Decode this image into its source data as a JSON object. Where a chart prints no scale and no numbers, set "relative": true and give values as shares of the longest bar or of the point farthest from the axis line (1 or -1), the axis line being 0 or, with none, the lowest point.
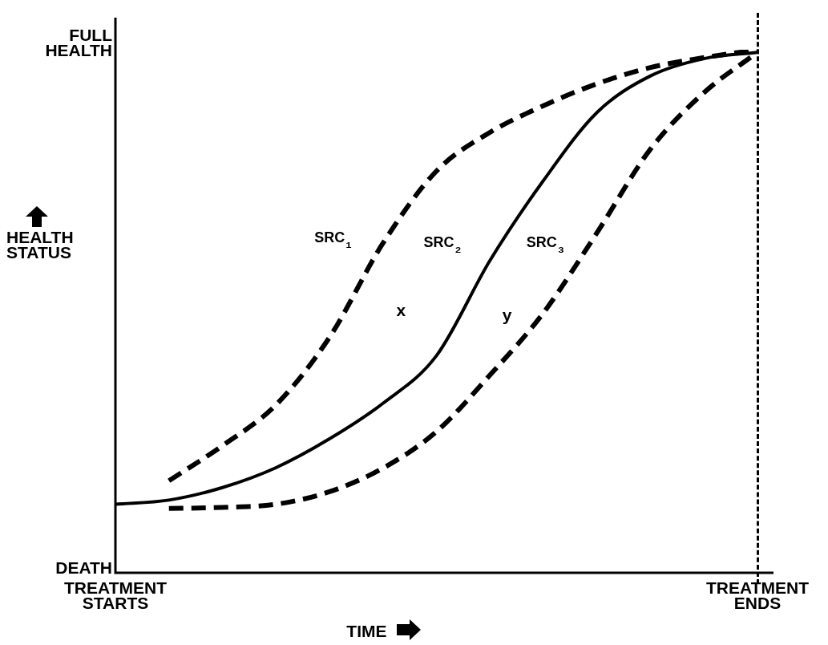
{
  "chart_data": {
    "type": "line",
    "relative": true,
    "xlabel": "TIME",
    "ylabel": "HEALTH STATUS",
    "categories": [
      null,
      null,
      null,
      null,
      null,
      null,
      null,
      null,
      null,
      null,
      null,
      null,
      null
    ],
    "legend": false,
    "marker": "none",
    "annotations": [
      "FULL HEALTH",
      "DEATH",
      "TREATMENT STARTS",
      "TREATMENT ENDS",
      "x",
      "y"
    ],
    "series": [
      {
        "name": "SRC₁",
        "color": "#000000",
        "line_style": "dashed",
        "values": [
          null,
          0.176,
          0.243,
          0.321,
          0.45,
          0.63,
          0.768,
          0.842,
          0.893,
          0.935,
          0.966,
          0.985,
          1
        ]
      },
      {
        "name": "SRC₂",
        "color": "#000000",
        "line_style": "solid",
        "values": [
          0.131,
          0.139,
          0.163,
          0.201,
          0.256,
          0.324,
          0.415,
          0.597,
          0.75,
          0.88,
          0.95,
          0.983,
          0.995
        ]
      },
      {
        "name": "SRC₃",
        "color": "#000000",
        "line_style": "dashed",
        "values": [
          null,
          0.123,
          0.125,
          0.131,
          0.155,
          0.2,
          0.27,
          0.378,
          0.497,
          0.65,
          0.81,
          0.918,
          0.995
        ]
      }
    ]
  }
}
